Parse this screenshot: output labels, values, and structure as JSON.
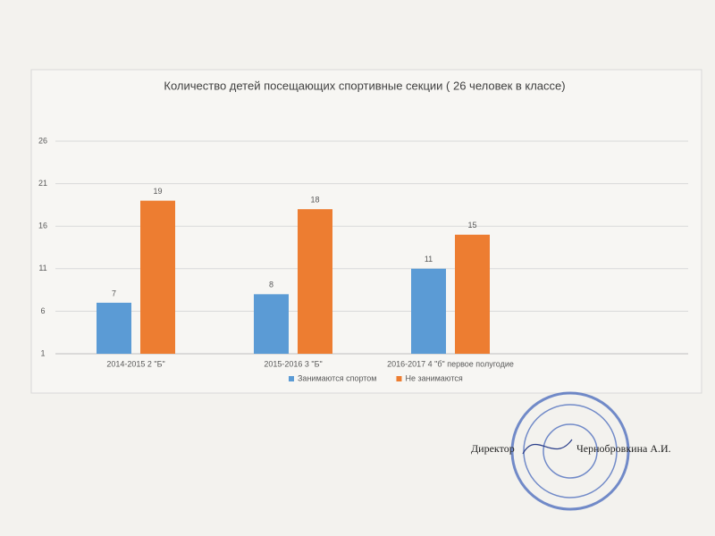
{
  "chart_data": {
    "type": "bar",
    "title": "Количество детей посещающих спортивные секции ( 26 человек в классе)",
    "categories": [
      "2014-2015 2 \"Б\"",
      "2015-2016 3 \"Б\"",
      "2016-2017 4 \"б\" первое полугодие"
    ],
    "series": [
      {
        "name": "Занимаются спортом",
        "color": "#5b9bd5",
        "values": [
          7,
          8,
          11
        ]
      },
      {
        "name": "Не занимаются",
        "color": "#ed7d31",
        "values": [
          19,
          18,
          15
        ]
      }
    ],
    "ylim": [
      1,
      26
    ],
    "yticks": [
      1,
      6,
      11,
      16,
      21,
      26
    ],
    "grid": true,
    "legend": "bottom"
  },
  "signature": {
    "role": "Директор",
    "name": "Чернобровкина А.И."
  }
}
